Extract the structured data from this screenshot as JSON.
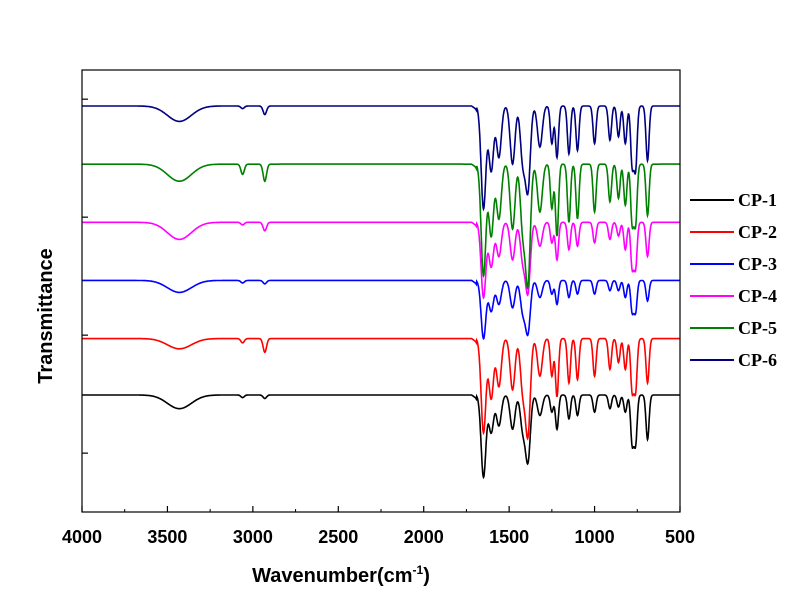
{
  "chart_data": {
    "type": "line",
    "title": "",
    "xlabel": "Wavenumber(cm",
    "xlabel_superscript": "-1",
    "xlabel_suffix": ")",
    "ylabel": "Transmittance",
    "xlim": [
      4000,
      500
    ],
    "x_reversed": true,
    "x_ticks": [
      4000,
      3500,
      3000,
      2500,
      2000,
      1500,
      1000,
      500
    ],
    "x_tick_labels": [
      "4000",
      "3500",
      "3000",
      "2500",
      "2000",
      "1500",
      "1000",
      "500"
    ],
    "y_tick_labels_shown": false,
    "legend_position": "right",
    "grid": false,
    "peak_positions_cm1": [
      3430,
      3060,
      2930,
      1650,
      1605,
      1560,
      1480,
      1420,
      1390,
      1320,
      1250,
      1220,
      1150,
      1100,
      1000,
      910,
      860,
      820,
      780,
      760,
      690
    ],
    "series": [
      {
        "name": "CP-1",
        "color": "#000000",
        "baseline": 0.15,
        "depths": [
          0.08,
          0.015,
          0.02,
          0.48,
          0.22,
          0.18,
          0.2,
          0.2,
          0.38,
          0.12,
          0.1,
          0.2,
          0.14,
          0.12,
          0.1,
          0.08,
          0.07,
          0.1,
          0.28,
          0.28,
          0.26
        ]
      },
      {
        "name": "CP-2",
        "color": "#ff0000",
        "baseline": 0.48,
        "depths": [
          0.06,
          0.025,
          0.08,
          0.55,
          0.35,
          0.28,
          0.3,
          0.3,
          0.55,
          0.22,
          0.22,
          0.34,
          0.26,
          0.24,
          0.22,
          0.18,
          0.14,
          0.18,
          0.3,
          0.3,
          0.26
        ]
      },
      {
        "name": "CP-3",
        "color": "#0000ff",
        "baseline": 0.82,
        "depths": [
          0.07,
          0.015,
          0.02,
          0.34,
          0.18,
          0.14,
          0.16,
          0.18,
          0.3,
          0.1,
          0.08,
          0.14,
          0.1,
          0.08,
          0.08,
          0.06,
          0.06,
          0.1,
          0.18,
          0.18,
          0.12
        ]
      },
      {
        "name": "CP-4",
        "color": "#ff00ff",
        "baseline": 1.16,
        "depths": [
          0.1,
          0.015,
          0.05,
          0.44,
          0.26,
          0.2,
          0.22,
          0.22,
          0.4,
          0.14,
          0.12,
          0.22,
          0.16,
          0.14,
          0.12,
          0.1,
          0.08,
          0.16,
          0.26,
          0.26,
          0.2
        ]
      },
      {
        "name": "CP-5",
        "color": "#008000",
        "baseline": 1.5,
        "depths": [
          0.1,
          0.06,
          0.1,
          0.65,
          0.42,
          0.32,
          0.38,
          0.38,
          0.68,
          0.28,
          0.26,
          0.42,
          0.34,
          0.32,
          0.28,
          0.22,
          0.2,
          0.24,
          0.34,
          0.34,
          0.3
        ]
      },
      {
        "name": "CP-6",
        "color": "#000080",
        "baseline": 1.84,
        "depths": [
          0.09,
          0.015,
          0.05,
          0.6,
          0.38,
          0.3,
          0.34,
          0.32,
          0.48,
          0.24,
          0.22,
          0.3,
          0.28,
          0.26,
          0.22,
          0.2,
          0.18,
          0.22,
          0.34,
          0.36,
          0.32
        ]
      }
    ]
  }
}
